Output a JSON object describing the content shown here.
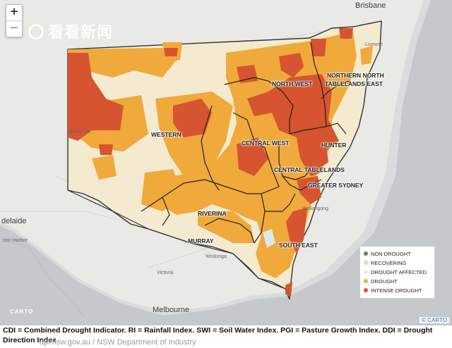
{
  "map": {
    "regions": [
      {
        "label": "NORTH WEST"
      },
      {
        "label": "NORTHERN NORTH"
      },
      {
        "label": "TABLELANDS EAST"
      },
      {
        "label": "WESTERN"
      },
      {
        "label": "CENTRAL WEST"
      },
      {
        "label": "HUNTER"
      },
      {
        "label": "CENTRAL TABLELANDS"
      },
      {
        "label": "GREATER SYDNEY"
      },
      {
        "label": "RIVERINA"
      },
      {
        "label": "MURRAY"
      },
      {
        "label": "SOUTH EAST"
      }
    ],
    "places": {
      "brisbane": "Brisbane",
      "melbourne": "Melbourne",
      "adelaide": "delaide",
      "broken_hill": "Broken H",
      "lismore": "Lismore",
      "wollongong": "Wollongong",
      "harbor": "ctor Harbor",
      "victoria": "Victoria",
      "wodonga": "Wodonga"
    },
    "legend": [
      {
        "label": "NON DROUGHT",
        "color": "#4a8f3e"
      },
      {
        "label": "RECOVERING",
        "color": "#c9e6a6"
      },
      {
        "label": "DROUGHT AFFECTED",
        "color": "#f4ead0"
      },
      {
        "label": "DROUGHT",
        "color": "#f0a93b"
      },
      {
        "label": "INTENSE DROUGHT",
        "color": "#d6542f"
      }
    ],
    "watermark": "看看新闻",
    "zoom_in": "+",
    "zoom_out": "−",
    "carto_logo": "CARTO",
    "attribution": "© CARTO"
  },
  "caption": "CDI = Combined Drought Indicator. RI = Rainfall Index. SWI = Soil Water Index. PGI = Pasture Growth Index. DDI = Drought Direction Index",
  "source": "dpi.nsw.gov.au / NSW Department of Industry"
}
